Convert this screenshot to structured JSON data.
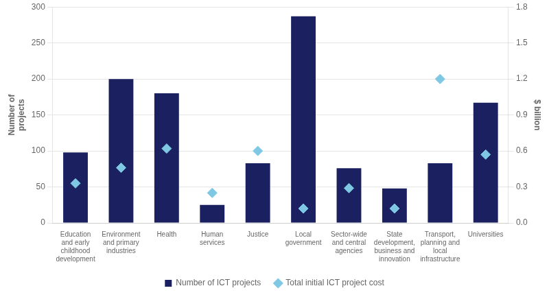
{
  "chart_data": {
    "type": "bar",
    "categories": [
      "Education\nand early\nchildhood\ndevelopment",
      "Environment\nand primary\nindustries",
      "Health",
      "Human\nservices",
      "Justice",
      "Local\ngovernment",
      "Sector-wide\nand central\nagencies",
      "State\ndevelopment,\nbusiness and\ninnovation",
      "Transport,\nplanning and\nlocal\ninfrastructure",
      "Universities"
    ],
    "series": [
      {
        "name": "Number of ICT projects",
        "type": "bar",
        "color": "#1a2060",
        "values": [
          98,
          200,
          180,
          25,
          83,
          287,
          76,
          48,
          83,
          167
        ]
      },
      {
        "name": "Total initial ICT project cost",
        "type": "scatter",
        "marker": "diamond",
        "axis": "y2",
        "color": "#7ec8e3",
        "values": [
          0.33,
          0.46,
          0.62,
          0.25,
          0.6,
          0.12,
          0.29,
          0.12,
          1.2,
          0.57
        ]
      }
    ],
    "ylabel": "Number of\nprojects",
    "y2label": "$ billion",
    "ylim": [
      0,
      300
    ],
    "yticks": [
      0,
      50,
      100,
      150,
      200,
      250,
      300
    ],
    "y2lim": [
      0,
      1.8
    ],
    "y2ticks": [
      {
        "value": 0,
        "label": "0.0"
      },
      0.3,
      0.6,
      0.9,
      1.2,
      1.5,
      1.8
    ],
    "grid": true,
    "legend": "bottom"
  }
}
